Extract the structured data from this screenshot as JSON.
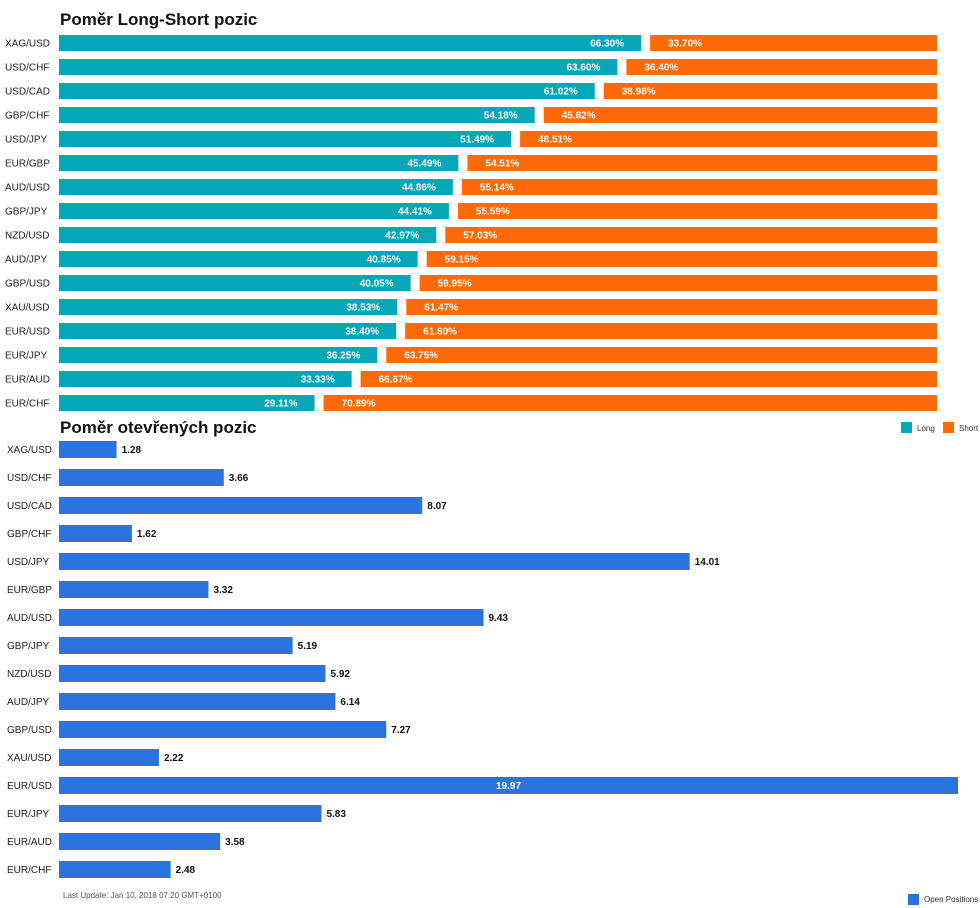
{
  "footer": {
    "last_update": "Last Update: Jan 10, 2018 07:20 GMT+0100"
  },
  "colors": {
    "long": "#06a7bb",
    "short": "#ff6a08",
    "open": "#2b74dd"
  },
  "chart_data": [
    {
      "type": "bar",
      "stacked": true,
      "orientation": "horizontal",
      "title": "Poměr Long-Short pozic",
      "categories": [
        "XAG/USD",
        "USD/CHF",
        "USD/CAD",
        "GBP/CHF",
        "USD/JPY",
        "EUR/GBP",
        "AUD/USD",
        "GBP/JPY",
        "NZD/USD",
        "AUD/JPY",
        "GBP/USD",
        "XAU/USD",
        "EUR/USD",
        "EUR/JPY",
        "EUR/AUD",
        "EUR/CHF"
      ],
      "series": [
        {
          "name": "Long",
          "values": [
            66.3,
            63.6,
            61.02,
            54.18,
            51.49,
            45.49,
            44.86,
            44.41,
            42.97,
            40.85,
            40.05,
            38.53,
            38.4,
            36.25,
            33.33,
            29.11
          ]
        },
        {
          "name": "Short",
          "values": [
            33.7,
            36.4,
            38.98,
            45.82,
            48.51,
            54.51,
            55.14,
            55.59,
            57.03,
            59.15,
            59.95,
            61.47,
            61.6,
            63.75,
            66.67,
            70.89
          ]
        }
      ],
      "value_labels": {
        "long": [
          "66.30%",
          "63.60%",
          "61.02%",
          "54.18%",
          "51.49%",
          "45.49%",
          "44.86%",
          "44.41%",
          "42.97%",
          "40.85%",
          "40.05%",
          "38.53%",
          "38.40%",
          "36.25%",
          "33.33%",
          "29.11%"
        ],
        "short": [
          "33.70%",
          "36.40%",
          "38.98%",
          "45.82%",
          "48.51%",
          "54.51%",
          "55.14%",
          "55.59%",
          "57.03%",
          "59.15%",
          "59.95%",
          "61.47%",
          "61.60%",
          "63.75%",
          "66.67%",
          "70.89%"
        ]
      },
      "xlim": [
        0,
        100
      ],
      "legend": {
        "position": "top-right",
        "entries": [
          "Long",
          "Short"
        ]
      },
      "grid": false
    },
    {
      "type": "bar",
      "orientation": "horizontal",
      "title": "Poměr otevřených pozic",
      "categories": [
        "XAG/USD",
        "USD/CHF",
        "USD/CAD",
        "GBP/CHF",
        "USD/JPY",
        "EUR/GBP",
        "AUD/USD",
        "GBP/JPY",
        "NZD/USD",
        "AUD/JPY",
        "GBP/USD",
        "XAU/USD",
        "EUR/USD",
        "EUR/JPY",
        "EUR/AUD",
        "EUR/CHF"
      ],
      "series": [
        {
          "name": "Open Positions",
          "values": [
            1.28,
            3.66,
            8.07,
            1.62,
            14.01,
            3.32,
            9.43,
            5.19,
            5.92,
            6.14,
            7.27,
            2.22,
            19.97,
            5.83,
            3.58,
            2.48
          ]
        }
      ],
      "value_labels": [
        "1.28",
        "3.66",
        "8.07",
        "1.62",
        "14.01",
        "3.32",
        "9.43",
        "5.19",
        "5.92",
        "6.14",
        "7.27",
        "2.22",
        "19.97",
        "5.83",
        "3.58",
        "2.48"
      ],
      "xlim": [
        0,
        19.97
      ],
      "legend": {
        "position": "bottom-right",
        "entries": [
          "Open Positions"
        ]
      },
      "grid": false
    }
  ]
}
